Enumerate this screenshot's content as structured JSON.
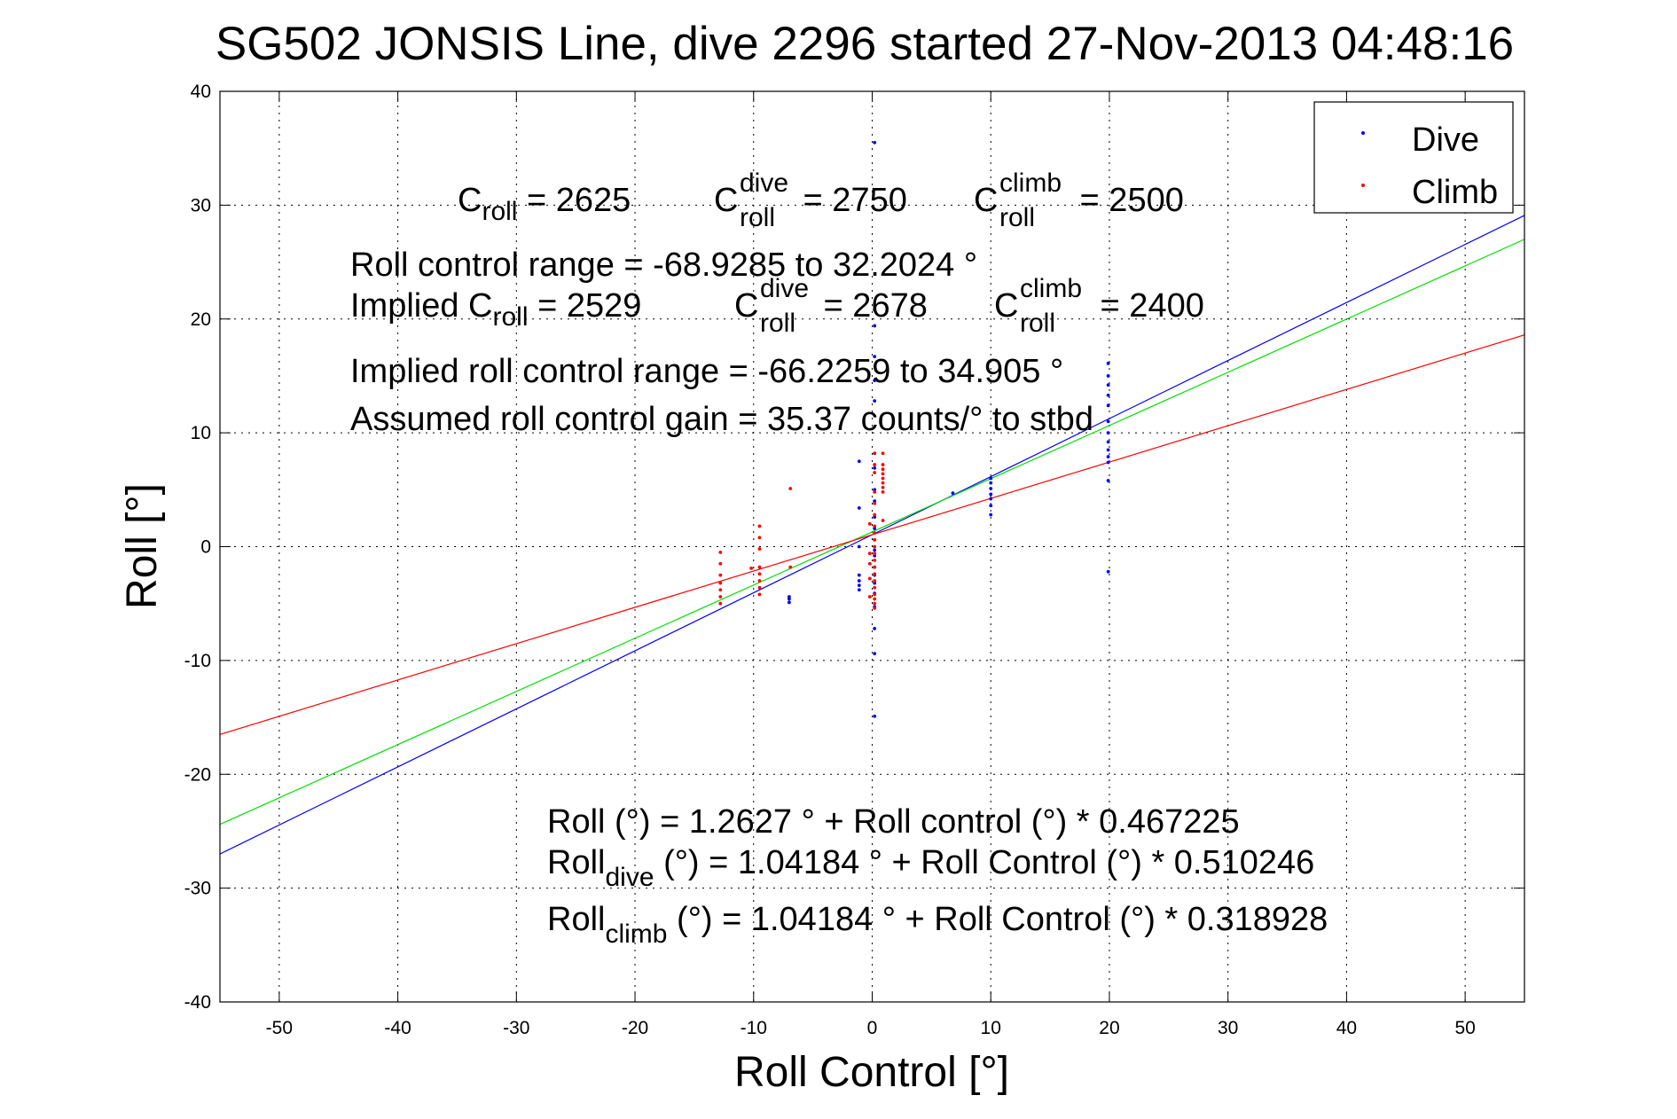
{
  "chart_data": {
    "type": "scatter",
    "title": "SG502 JONSIS Line, dive 2296 started 27-Nov-2013 04:48:16",
    "xlabel": "Roll Control [°]",
    "ylabel": "Roll [°]",
    "xlim": [
      -55,
      55
    ],
    "ylim": [
      -40,
      40
    ],
    "xticks": [
      -50,
      -40,
      -30,
      -20,
      -10,
      0,
      10,
      20,
      30,
      40,
      50
    ],
    "yticks": [
      -40,
      -30,
      -20,
      -10,
      0,
      10,
      20,
      30,
      40
    ],
    "grid": true,
    "legend": {
      "position": "top-right",
      "entries": [
        "Dive",
        "Climb"
      ]
    },
    "series": [
      {
        "name": "Dive",
        "type": "scatter",
        "color": "#0000ff",
        "points": [
          [
            0.2,
            35.5
          ],
          [
            0.2,
            20.8
          ],
          [
            0.2,
            19.4
          ],
          [
            0.2,
            16.7
          ],
          [
            0.2,
            14.6
          ],
          [
            0.2,
            12.8
          ],
          [
            0.2,
            8.2
          ],
          [
            0.2,
            6.9
          ],
          [
            0.2,
            5.0
          ],
          [
            0.2,
            4.0
          ],
          [
            0.2,
            2.6
          ],
          [
            0.2,
            1.6
          ],
          [
            0.2,
            0.6
          ],
          [
            0.2,
            -0.3
          ],
          [
            0.2,
            -0.8
          ],
          [
            0.2,
            -1.8
          ],
          [
            0.2,
            -2.5
          ],
          [
            0.2,
            -3.2
          ],
          [
            0.2,
            -4.1
          ],
          [
            0.2,
            -5.3
          ],
          [
            0.2,
            -7.2
          ],
          [
            0.2,
            -9.4
          ],
          [
            0.2,
            -14.9
          ],
          [
            -1.1,
            7.5
          ],
          [
            -1.1,
            3.4
          ],
          [
            -1.1,
            0.0
          ],
          [
            -1.1,
            -2.5
          ],
          [
            -1.1,
            -3.0
          ],
          [
            -1.1,
            -3.4
          ],
          [
            -1.1,
            -3.8
          ],
          [
            -7.0,
            -4.4
          ],
          [
            -7.0,
            -4.6
          ],
          [
            -7.0,
            -4.9
          ],
          [
            6.8,
            4.7
          ],
          [
            10.0,
            6.0
          ],
          [
            10.0,
            5.6
          ],
          [
            10.0,
            5.1
          ],
          [
            10.0,
            4.6
          ],
          [
            10.0,
            4.2
          ],
          [
            10.0,
            3.6
          ],
          [
            10.0,
            2.8
          ],
          [
            19.9,
            16.1
          ],
          [
            19.9,
            15.0
          ],
          [
            19.9,
            14.2
          ],
          [
            19.9,
            13.3
          ],
          [
            19.9,
            12.4
          ],
          [
            19.9,
            11.0
          ],
          [
            19.9,
            10.0
          ],
          [
            19.9,
            9.2
          ],
          [
            19.9,
            8.5
          ],
          [
            19.9,
            7.9
          ],
          [
            19.9,
            7.4
          ],
          [
            19.9,
            5.8
          ],
          [
            19.9,
            -2.2
          ]
        ]
      },
      {
        "name": "Climb",
        "type": "scatter",
        "color": "#ff0000",
        "points": [
          [
            0.9,
            8.2
          ],
          [
            0.9,
            7.2
          ],
          [
            0.9,
            6.8
          ],
          [
            0.9,
            6.4
          ],
          [
            0.9,
            6.0
          ],
          [
            0.9,
            5.6
          ],
          [
            0.9,
            5.2
          ],
          [
            0.9,
            4.8
          ],
          [
            0.9,
            2.3
          ],
          [
            0.2,
            8.2
          ],
          [
            0.2,
            7.2
          ],
          [
            0.2,
            6.5
          ],
          [
            0.2,
            4.8
          ],
          [
            0.2,
            3.8
          ],
          [
            0.2,
            2.8
          ],
          [
            0.2,
            1.8
          ],
          [
            0.2,
            1.2
          ],
          [
            0.2,
            0.6
          ],
          [
            0.2,
            0.0
          ],
          [
            0.2,
            -0.6
          ],
          [
            0.2,
            -1.2
          ],
          [
            0.2,
            -1.8
          ],
          [
            0.2,
            -2.4
          ],
          [
            0.2,
            -3.0
          ],
          [
            0.2,
            -3.6
          ],
          [
            0.2,
            -4.2
          ],
          [
            0.2,
            -4.6
          ],
          [
            0.2,
            -5.0
          ],
          [
            0.2,
            -5.4
          ],
          [
            -0.2,
            2.0
          ],
          [
            -0.2,
            -0.6
          ],
          [
            -0.2,
            -1.5
          ],
          [
            -0.2,
            -2.8
          ],
          [
            -0.2,
            -4.4
          ],
          [
            -6.9,
            5.1
          ],
          [
            -6.9,
            -1.8
          ],
          [
            -9.5,
            1.8
          ],
          [
            -9.5,
            0.8
          ],
          [
            -9.5,
            -0.2
          ],
          [
            -9.5,
            -1.8
          ],
          [
            -9.5,
            -2.4
          ],
          [
            -9.5,
            -3.0
          ],
          [
            -9.5,
            -3.6
          ],
          [
            -9.5,
            -4.2
          ],
          [
            -10.2,
            -1.9
          ],
          [
            -12.8,
            -0.5
          ],
          [
            -12.8,
            -1.5
          ],
          [
            -12.8,
            -2.5
          ],
          [
            -12.8,
            -3.2
          ],
          [
            -12.8,
            -3.8
          ],
          [
            -12.8,
            -4.4
          ],
          [
            -12.8,
            -5.0
          ]
        ]
      },
      {
        "name": "Dive fit",
        "type": "line",
        "color": "#0000ff",
        "x": [
          -55,
          55
        ],
        "y": [
          -27.0,
          29.1
        ]
      },
      {
        "name": "All fit",
        "type": "line",
        "color": "#00e000",
        "x": [
          -55,
          55
        ],
        "y": [
          -24.4,
          27.0
        ]
      },
      {
        "name": "Climb fit",
        "type": "line",
        "color": "#ff0000",
        "x": [
          -55,
          55
        ],
        "y": [
          -16.5,
          18.6
        ]
      }
    ],
    "annotations": {
      "c_roll": {
        "base": "C",
        "sub": "roll",
        "value": " = 2625"
      },
      "c_roll_dive": {
        "base": "C",
        "sub": "roll",
        "sup": "dive",
        "value": " = 2750"
      },
      "c_roll_climb": {
        "base": "C",
        "sub": "roll",
        "sup": "climb",
        "value": " = 2500"
      },
      "roll_control_range": "Roll control range = -68.9285 to 32.2024 °",
      "implied_c_roll": {
        "prefix": "Implied C",
        "sub": "roll",
        "value": " = 2529"
      },
      "implied_c_roll_dive": {
        "base": "C",
        "sub": "roll",
        "sup": "dive",
        "value": " = 2678"
      },
      "implied_c_roll_climb": {
        "base": "C",
        "sub": "roll",
        "sup": "climb",
        "value": " = 2400"
      },
      "implied_range": "Implied roll control range = -66.2259 to 34.905 °",
      "gain": "Assumed roll control gain = 35.37 counts/° to stbd",
      "fit_all": "Roll (°) = 1.2627 ° + Roll control (°) * 0.467225",
      "fit_dive": {
        "base": "Roll",
        "sub": "dive",
        "rest": " (°) = 1.04184 ° + Roll Control (°) * 0.510246"
      },
      "fit_climb": {
        "base": "Roll",
        "sub": "climb",
        "rest": " (°) = 1.04184 ° + Roll Control (°) * 0.318928"
      }
    }
  }
}
